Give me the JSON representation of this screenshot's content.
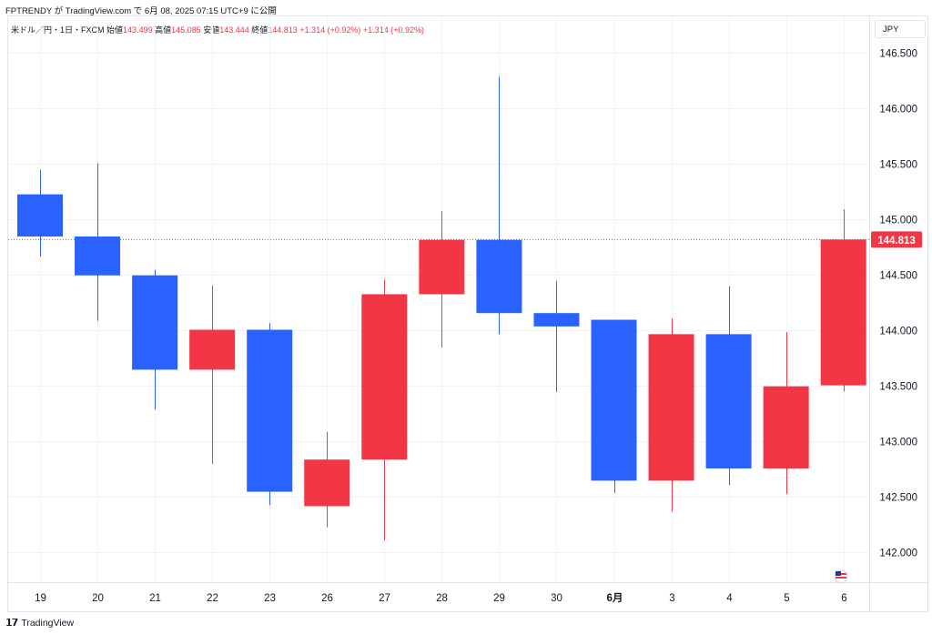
{
  "header": {
    "publisher": "FPTRENDY",
    "text": "が TradingView.com で 6月 08, 2025 07:15 UTC+9 に公開"
  },
  "legend": {
    "symbol": "米ドル／円・1日・FXCM",
    "open_label": "始値",
    "open": "143.499",
    "high_label": "高値",
    "high": "145.085",
    "low_label": "安値",
    "low": "143.444",
    "close_label": "終値",
    "close": "144.813",
    "change": "+1.314 (+0.92%)",
    "change2": "+1.314 (+0.92%)"
  },
  "currency_button": "JPY",
  "footer": {
    "brand": "TradingView"
  },
  "colors": {
    "up": "#f23645",
    "down": "#2962ff",
    "grid": "#f0f3fa",
    "price_line": "#f23645"
  },
  "chart_data": {
    "type": "candlestick",
    "ylim": [
      141.9,
      146.75
    ],
    "yticks": [
      142.0,
      142.5,
      143.0,
      143.5,
      144.0,
      144.5,
      145.0,
      145.5,
      146.0,
      146.5
    ],
    "ytick_labels": [
      "142.000",
      "142.500",
      "143.000",
      "143.500",
      "144.000",
      "144.500",
      "145.000",
      "145.500",
      "146.000",
      "146.500"
    ],
    "last_price": 144.813,
    "last_price_label": "144.813",
    "candles": [
      {
        "label": "19",
        "open": 145.22,
        "high": 145.44,
        "low": 144.66,
        "close": 144.84
      },
      {
        "label": "20",
        "open": 144.84,
        "high": 145.5,
        "low": 144.08,
        "close": 144.49
      },
      {
        "label": "21",
        "open": 144.49,
        "high": 144.54,
        "low": 143.28,
        "close": 143.64
      },
      {
        "label": "22",
        "open": 143.64,
        "high": 144.4,
        "low": 142.79,
        "close": 144.0
      },
      {
        "label": "23",
        "open": 144.0,
        "high": 144.06,
        "low": 142.42,
        "close": 142.54
      },
      {
        "label": "26",
        "open": 142.41,
        "high": 143.08,
        "low": 142.22,
        "close": 142.83
      },
      {
        "label": "27",
        "open": 142.83,
        "high": 144.45,
        "low": 142.1,
        "close": 144.32
      },
      {
        "label": "28",
        "open": 144.32,
        "high": 145.07,
        "low": 143.84,
        "close": 144.81
      },
      {
        "label": "29",
        "open": 144.81,
        "high": 146.28,
        "low": 143.96,
        "close": 144.15
      },
      {
        "label": "30",
        "open": 144.15,
        "high": 144.44,
        "low": 143.44,
        "close": 144.03
      },
      {
        "label": "6月",
        "open": 144.09,
        "high": 144.09,
        "low": 142.53,
        "close": 142.64,
        "bold": true
      },
      {
        "label": "3",
        "open": 142.64,
        "high": 144.1,
        "low": 142.36,
        "close": 143.96
      },
      {
        "label": "4",
        "open": 143.96,
        "high": 144.39,
        "low": 142.6,
        "close": 142.75
      },
      {
        "label": "5",
        "open": 142.75,
        "high": 143.98,
        "low": 142.52,
        "close": 143.49
      },
      {
        "label": "6",
        "open": 143.499,
        "high": 145.085,
        "low": 143.444,
        "close": 144.813
      }
    ]
  }
}
